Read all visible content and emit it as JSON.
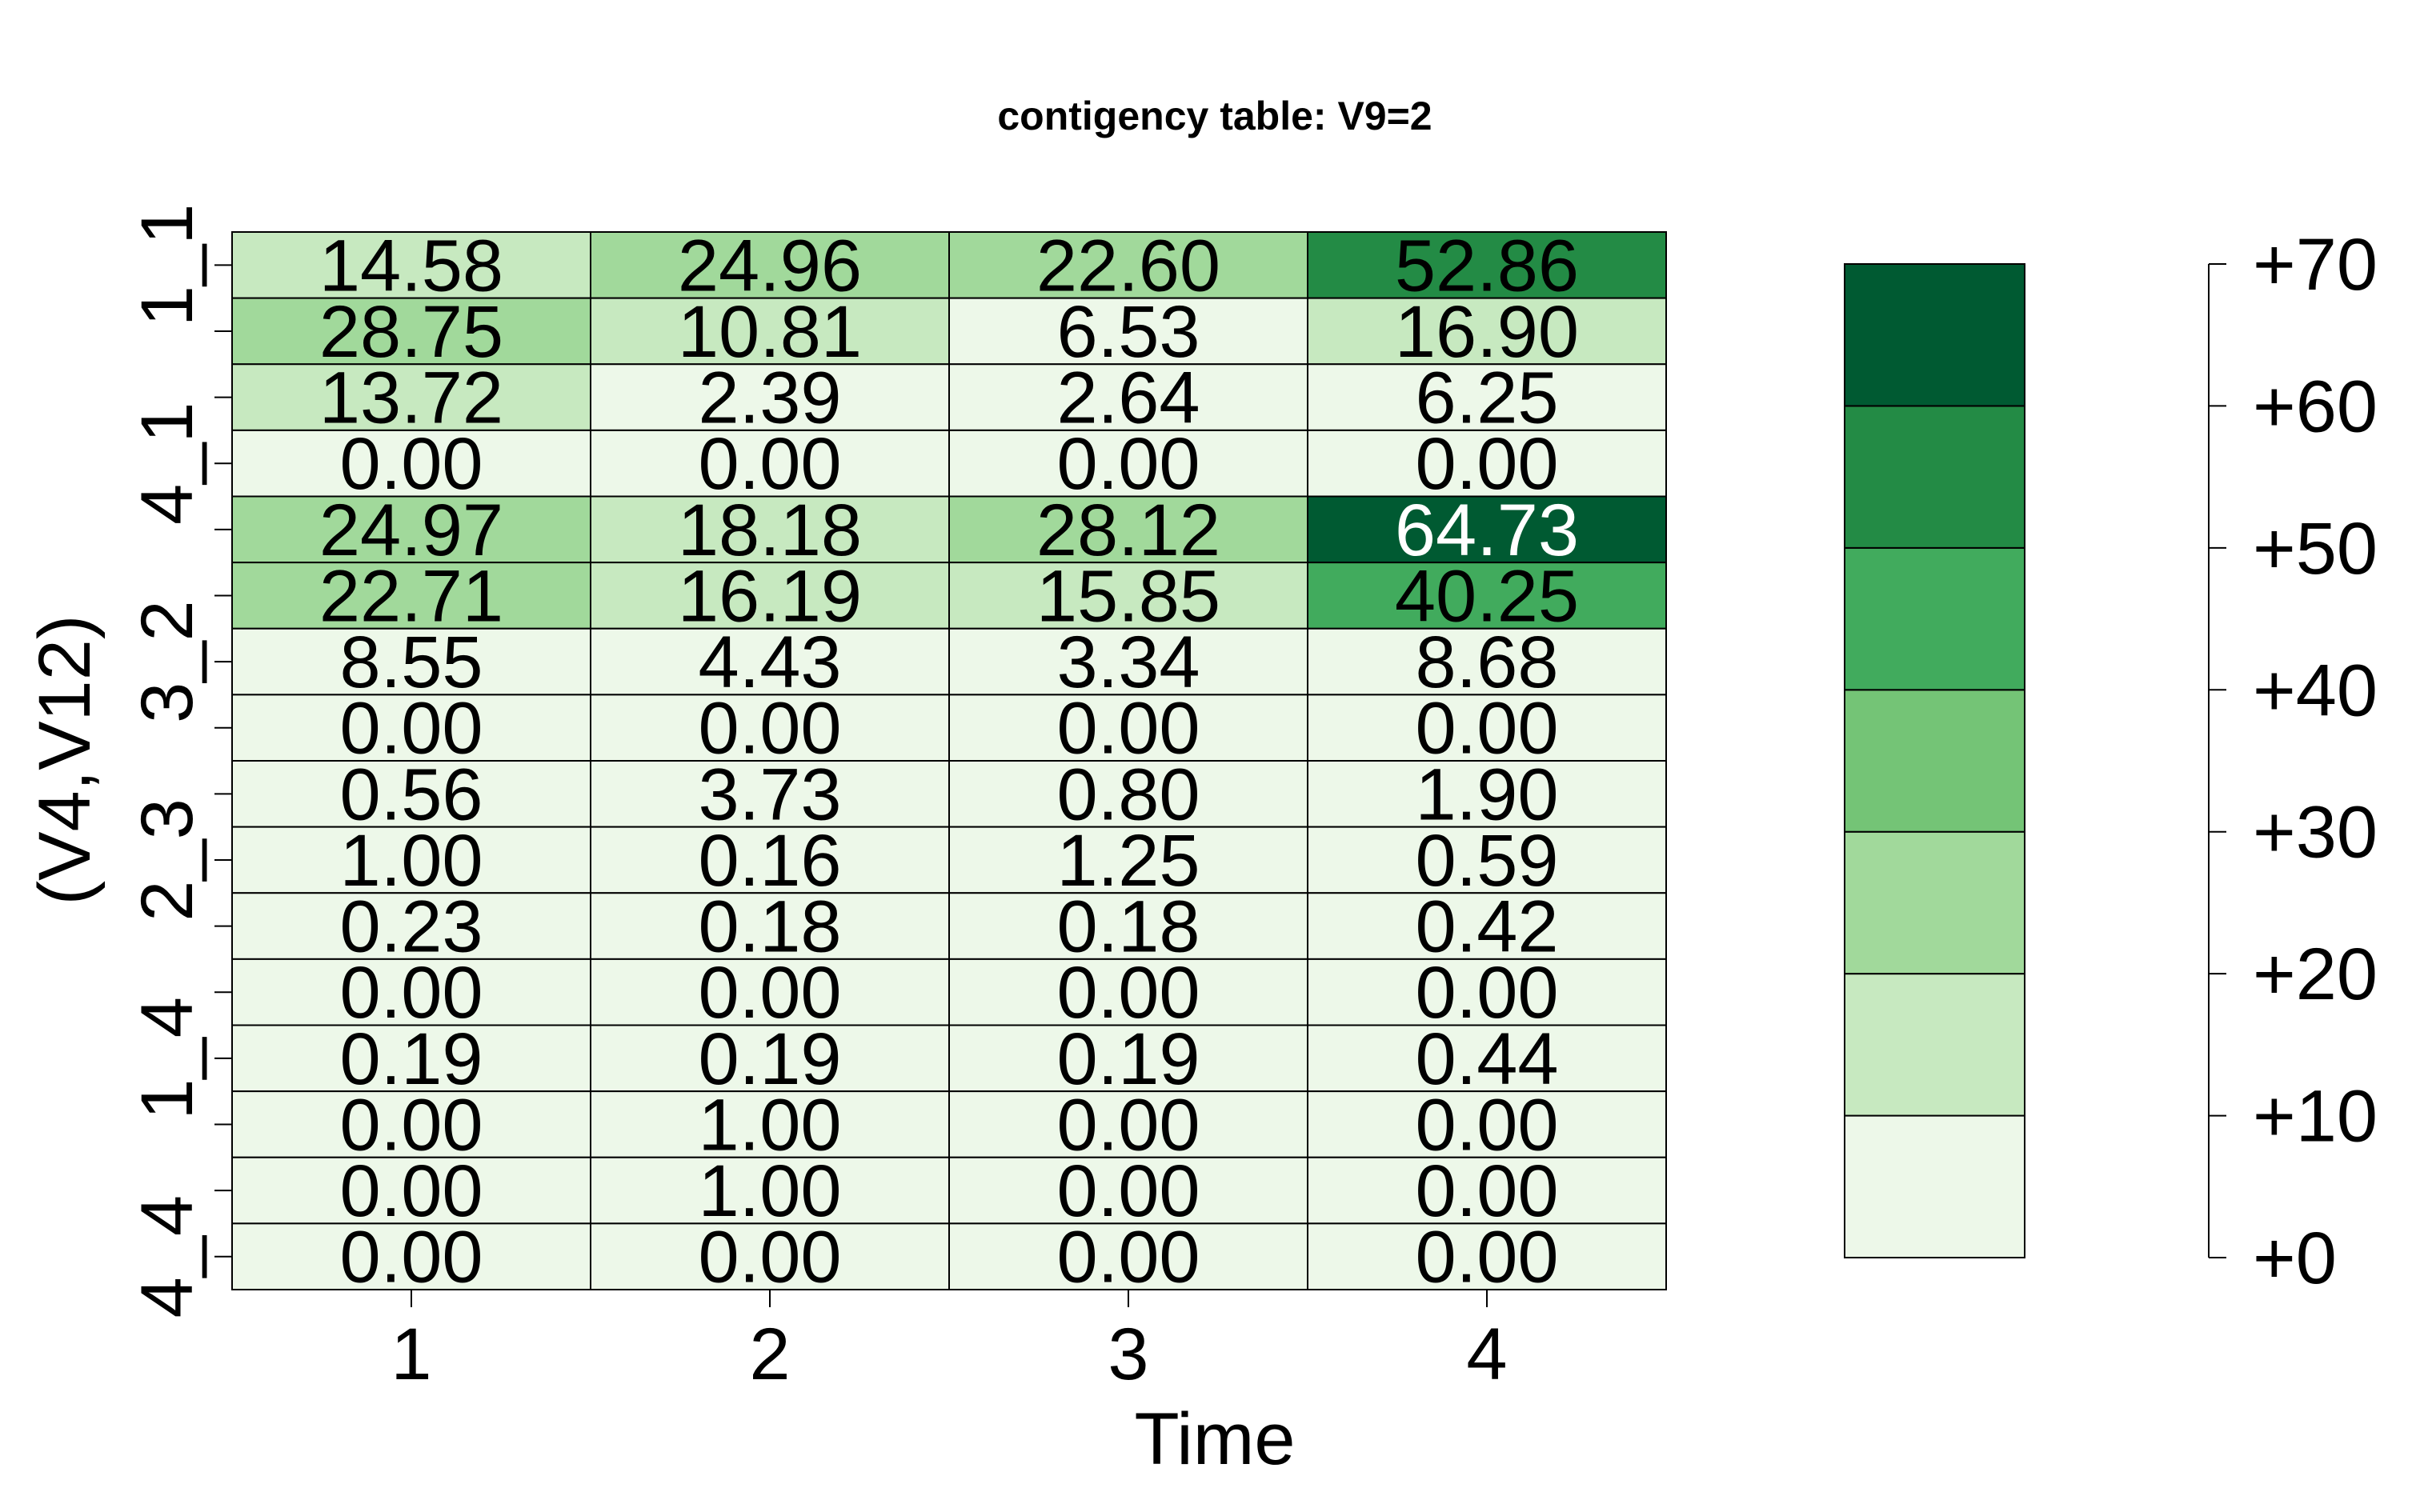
{
  "chart_data": {
    "type": "heatmap",
    "title": "contigency table: V9=2",
    "xlabel": "Time",
    "ylabel": "(V4,V12)",
    "x_categories": [
      "1",
      "2",
      "3",
      "4"
    ],
    "y_categories": [
      "1_1",
      "4_1",
      "3_2",
      "2_3",
      "1_4",
      "4_4"
    ],
    "values": [
      [
        14.58,
        24.96,
        22.6,
        52.86
      ],
      [
        28.75,
        10.81,
        6.53,
        16.9
      ],
      [
        13.72,
        2.39,
        2.64,
        6.25
      ],
      [
        0.0,
        0.0,
        0.0,
        0.0
      ],
      [
        24.97,
        18.18,
        28.12,
        64.73
      ],
      [
        22.71,
        16.19,
        15.85,
        40.25
      ],
      [
        8.55,
        4.43,
        3.34,
        8.68
      ],
      [
        0.0,
        0.0,
        0.0,
        0.0
      ],
      [
        0.56,
        3.73,
        0.8,
        1.9
      ],
      [
        1.0,
        0.16,
        1.25,
        0.59
      ],
      [
        0.23,
        0.18,
        0.18,
        0.42
      ],
      [
        0.0,
        0.0,
        0.0,
        0.0
      ],
      [
        0.19,
        0.19,
        0.19,
        0.44
      ],
      [
        0.0,
        1.0,
        0.0,
        0.0
      ],
      [
        0.0,
        1.0,
        0.0,
        0.0
      ],
      [
        0.0,
        0.0,
        0.0,
        0.0
      ]
    ],
    "cell_labels": [
      [
        "14.58",
        "24.96",
        "22.60",
        "52.86"
      ],
      [
        "28.75",
        "10.81",
        "6.53",
        "16.90"
      ],
      [
        "13.72",
        "2.39",
        "2.64",
        "6.25"
      ],
      [
        "0.00",
        "0.00",
        "0.00",
        "0.00"
      ],
      [
        "24.97",
        "18.18",
        "28.12",
        "64.73"
      ],
      [
        "22.71",
        "16.19",
        "15.85",
        "40.25"
      ],
      [
        "8.55",
        "4.43",
        "3.34",
        "8.68"
      ],
      [
        "0.00",
        "0.00",
        "0.00",
        "0.00"
      ],
      [
        "0.56",
        "3.73",
        "0.80",
        "1.90"
      ],
      [
        "1.00",
        "0.16",
        "1.25",
        "0.59"
      ],
      [
        "0.23",
        "0.18",
        "0.18",
        "0.42"
      ],
      [
        "0.00",
        "0.00",
        "0.00",
        "0.00"
      ],
      [
        "0.19",
        "0.19",
        "0.19",
        "0.44"
      ],
      [
        "0.00",
        "1.00",
        "0.00",
        "0.00"
      ],
      [
        "0.00",
        "1.00",
        "0.00",
        "0.00"
      ],
      [
        "0.00",
        "0.00",
        "0.00",
        "0.00"
      ]
    ],
    "color_scale": {
      "breaks": [
        0,
        10,
        20,
        30,
        40,
        50,
        60,
        70
      ],
      "colors": [
        "#edf8e9",
        "#c7e9c0",
        "#a1d99b",
        "#74c476",
        "#41ab5d",
        "#238b45",
        "#005a32"
      ],
      "labels": [
        "+0",
        "+10",
        "+20",
        "+30",
        "+40",
        "+50",
        "+60",
        "+70"
      ]
    },
    "grid": true,
    "legend": "right"
  }
}
